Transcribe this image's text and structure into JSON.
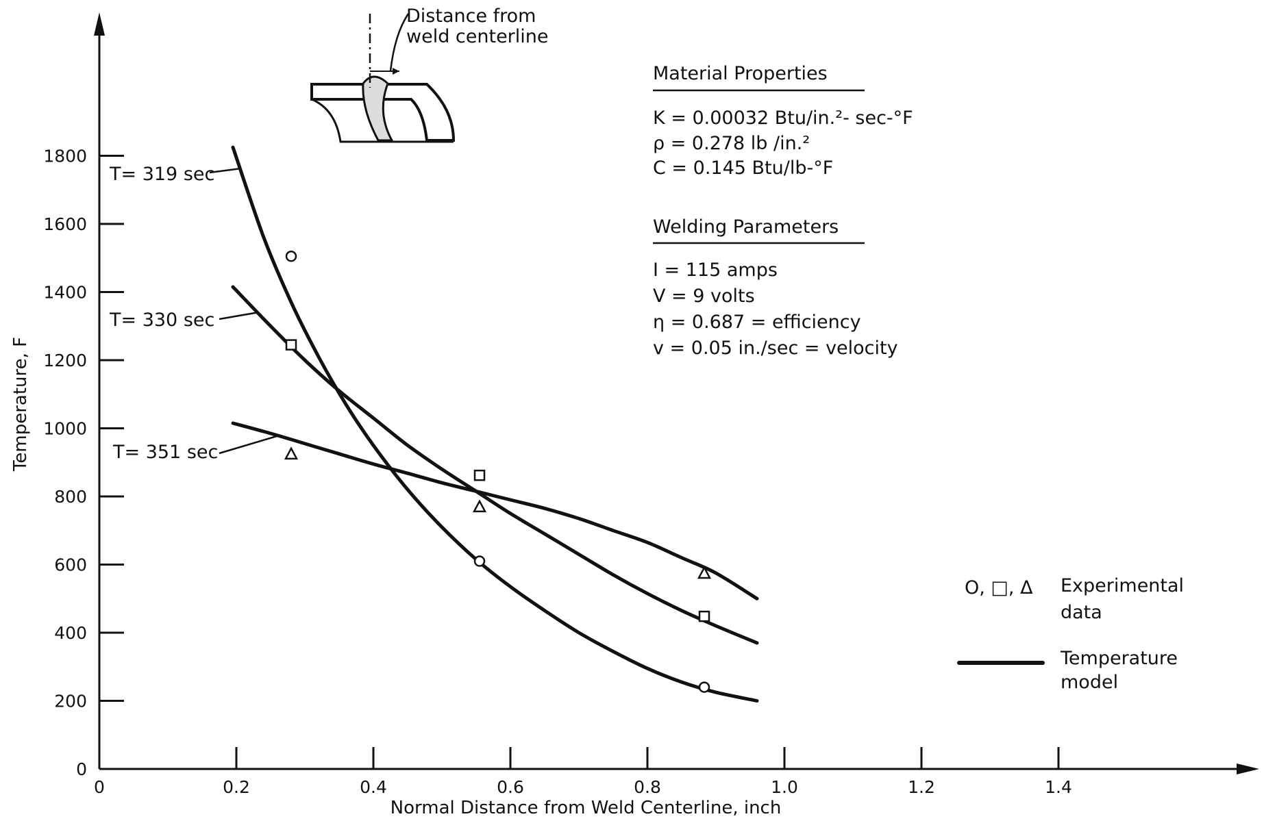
{
  "chart_data": {
    "type": "line",
    "xlabel": "Normal Distance from Weld Centerline, inch",
    "ylabel": "Temperature, F",
    "xlim": [
      0,
      1.6
    ],
    "ylim": [
      0,
      2000
    ],
    "x_ticks": [
      "0",
      "0.2",
      "0.4",
      "0.6",
      "0.8",
      "1.0",
      "1.2",
      "1.4"
    ],
    "y_ticks": [
      "0",
      "200",
      "400",
      "600",
      "800",
      "1000",
      "1200",
      "1400",
      "1600",
      "1800"
    ],
    "grid": false,
    "series": [
      {
        "name": "T= 319 sec",
        "model_x": [
          0.195,
          0.24,
          0.28,
          0.32,
          0.36,
          0.4,
          0.45,
          0.5,
          0.55,
          0.6,
          0.65,
          0.7,
          0.75,
          0.8,
          0.85,
          0.9,
          0.96
        ],
        "model_y": [
          1825,
          1560,
          1370,
          1210,
          1070,
          950,
          820,
          710,
          615,
          535,
          465,
          400,
          345,
          295,
          255,
          225,
          200
        ],
        "experimental_x": [
          0.28,
          0.555,
          0.883
        ],
        "experimental_y": [
          1505,
          610,
          240
        ],
        "marker": "circle"
      },
      {
        "name": "T= 330 sec",
        "model_x": [
          0.195,
          0.25,
          0.3,
          0.35,
          0.4,
          0.45,
          0.5,
          0.55,
          0.6,
          0.65,
          0.7,
          0.75,
          0.8,
          0.85,
          0.9,
          0.96
        ],
        "model_y": [
          1415,
          1300,
          1200,
          1110,
          1030,
          950,
          880,
          815,
          750,
          690,
          630,
          570,
          515,
          465,
          420,
          370
        ],
        "experimental_x": [
          0.28,
          0.555,
          0.883
        ],
        "experimental_y": [
          1245,
          862,
          448
        ],
        "marker": "square"
      },
      {
        "name": "T= 351 sec",
        "model_x": [
          0.195,
          0.25,
          0.3,
          0.35,
          0.4,
          0.45,
          0.5,
          0.55,
          0.6,
          0.65,
          0.7,
          0.75,
          0.8,
          0.85,
          0.9,
          0.96
        ],
        "model_y": [
          1015,
          985,
          955,
          925,
          895,
          868,
          840,
          815,
          790,
          765,
          735,
          700,
          665,
          620,
          575,
          500
        ],
        "experimental_x": [
          0.28,
          0.555,
          0.883
        ],
        "experimental_y": [
          925,
          770,
          575
        ],
        "marker": "triangle"
      }
    ],
    "legend": {
      "position": "bottom-right",
      "markers_label": "O, □, Δ",
      "experimental_line1": "Experimental",
      "experimental_line2": "data",
      "model_line1": "Temperature",
      "model_line2": "model"
    },
    "annotations": {
      "material_title": "Material Properties",
      "material_lines": [
        "K = 0.00032 Btu/in.²- sec-°F",
        "ρ = 0.278 lb /in.²",
        "C = 0.145 Btu/lb-°F"
      ],
      "welding_title": "Welding Parameters",
      "welding_lines": [
        "I = 115 amps",
        "V = 9 volts",
        "η = 0.687 = efficiency",
        "v = 0.05 in./sec = velocity"
      ],
      "inset_label_line1": "Distance from",
      "inset_label_line2": "weld centerline"
    }
  }
}
